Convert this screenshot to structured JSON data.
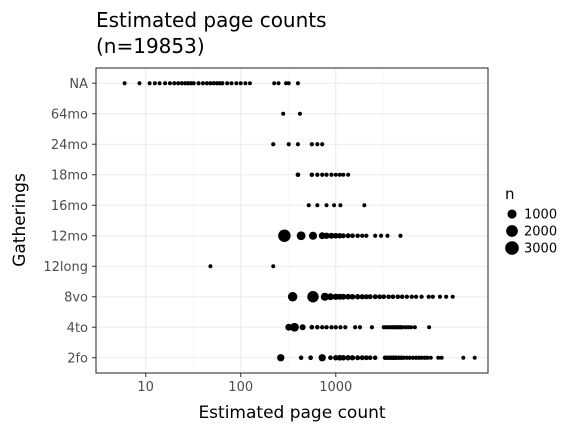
{
  "chart_data": {
    "type": "scatter",
    "title": "Estimated page counts",
    "subtitle": "(n=19853)",
    "xlabel": "Estimated page count",
    "ylabel": "Gatherings",
    "x_scale": "log10",
    "xlim": [
      3,
      40000
    ],
    "x_ticks": [
      10,
      100,
      1000
    ],
    "x_tick_labels": [
      "10",
      "100",
      "1000"
    ],
    "categories": [
      "2fo",
      "4to",
      "8vo",
      "12long",
      "12mo",
      "16mo",
      "18mo",
      "24mo",
      "64mo",
      "NA"
    ],
    "grid": true,
    "legend": {
      "title": "n",
      "position": "right",
      "sizes": [
        1000,
        2000,
        3000
      ],
      "labels": [
        "1000",
        "2000",
        "3000"
      ]
    },
    "points": [
      {
        "cat": "NA",
        "x": 6,
        "n": 25
      },
      {
        "cat": "NA",
        "x": 8.6,
        "n": 25
      },
      {
        "cat": "NA",
        "x": 11,
        "n": 25
      },
      {
        "cat": "NA",
        "x": 12.5,
        "n": 25
      },
      {
        "cat": "NA",
        "x": 14,
        "n": 25
      },
      {
        "cat": "NA",
        "x": 16,
        "n": 30
      },
      {
        "cat": "NA",
        "x": 18,
        "n": 30
      },
      {
        "cat": "NA",
        "x": 20,
        "n": 35
      },
      {
        "cat": "NA",
        "x": 22,
        "n": 35
      },
      {
        "cat": "NA",
        "x": 24,
        "n": 35
      },
      {
        "cat": "NA",
        "x": 26,
        "n": 35
      },
      {
        "cat": "NA",
        "x": 28,
        "n": 35
      },
      {
        "cat": "NA",
        "x": 30,
        "n": 35
      },
      {
        "cat": "NA",
        "x": 32,
        "n": 35
      },
      {
        "cat": "NA",
        "x": 36,
        "n": 35
      },
      {
        "cat": "NA",
        "x": 40,
        "n": 35
      },
      {
        "cat": "NA",
        "x": 44,
        "n": 35
      },
      {
        "cat": "NA",
        "x": 48,
        "n": 35
      },
      {
        "cat": "NA",
        "x": 52,
        "n": 35
      },
      {
        "cat": "NA",
        "x": 56,
        "n": 35
      },
      {
        "cat": "NA",
        "x": 60,
        "n": 35
      },
      {
        "cat": "NA",
        "x": 64,
        "n": 35
      },
      {
        "cat": "NA",
        "x": 72,
        "n": 30
      },
      {
        "cat": "NA",
        "x": 80,
        "n": 30
      },
      {
        "cat": "NA",
        "x": 90,
        "n": 25
      },
      {
        "cat": "NA",
        "x": 100,
        "n": 25
      },
      {
        "cat": "NA",
        "x": 112,
        "n": 25
      },
      {
        "cat": "NA",
        "x": 125,
        "n": 25
      },
      {
        "cat": "NA",
        "x": 225,
        "n": 25
      },
      {
        "cat": "NA",
        "x": 250,
        "n": 25
      },
      {
        "cat": "NA",
        "x": 300,
        "n": 25
      },
      {
        "cat": "NA",
        "x": 320,
        "n": 25
      },
      {
        "cat": "NA",
        "x": 400,
        "n": 25
      },
      {
        "cat": "64mo",
        "x": 280,
        "n": 25
      },
      {
        "cat": "64mo",
        "x": 420,
        "n": 25
      },
      {
        "cat": "24mo",
        "x": 220,
        "n": 40
      },
      {
        "cat": "24mo",
        "x": 320,
        "n": 35
      },
      {
        "cat": "24mo",
        "x": 400,
        "n": 35
      },
      {
        "cat": "24mo",
        "x": 560,
        "n": 35
      },
      {
        "cat": "24mo",
        "x": 640,
        "n": 35
      },
      {
        "cat": "24mo",
        "x": 720,
        "n": 35
      },
      {
        "cat": "18mo",
        "x": 400,
        "n": 70
      },
      {
        "cat": "18mo",
        "x": 560,
        "n": 60
      },
      {
        "cat": "18mo",
        "x": 640,
        "n": 50
      },
      {
        "cat": "18mo",
        "x": 720,
        "n": 40
      },
      {
        "cat": "18mo",
        "x": 800,
        "n": 40
      },
      {
        "cat": "18mo",
        "x": 900,
        "n": 35
      },
      {
        "cat": "18mo",
        "x": 1000,
        "n": 30
      },
      {
        "cat": "18mo",
        "x": 1100,
        "n": 30
      },
      {
        "cat": "18mo",
        "x": 1200,
        "n": 30
      },
      {
        "cat": "18mo",
        "x": 1350,
        "n": 25
      },
      {
        "cat": "16mo",
        "x": 520,
        "n": 30
      },
      {
        "cat": "16mo",
        "x": 640,
        "n": 30
      },
      {
        "cat": "16mo",
        "x": 800,
        "n": 25
      },
      {
        "cat": "16mo",
        "x": 960,
        "n": 25
      },
      {
        "cat": "16mo",
        "x": 1120,
        "n": 25
      },
      {
        "cat": "16mo",
        "x": 2000,
        "n": 25
      },
      {
        "cat": "12mo",
        "x": 288,
        "n": 2400
      },
      {
        "cat": "12mo",
        "x": 432,
        "n": 900
      },
      {
        "cat": "12mo",
        "x": 576,
        "n": 700
      },
      {
        "cat": "12mo",
        "x": 720,
        "n": 400
      },
      {
        "cat": "12mo",
        "x": 800,
        "n": 300
      },
      {
        "cat": "12mo",
        "x": 900,
        "n": 250
      },
      {
        "cat": "12mo",
        "x": 1000,
        "n": 200
      },
      {
        "cat": "12mo",
        "x": 1100,
        "n": 150
      },
      {
        "cat": "12mo",
        "x": 1200,
        "n": 120
      },
      {
        "cat": "12mo",
        "x": 1350,
        "n": 100
      },
      {
        "cat": "12mo",
        "x": 1500,
        "n": 80
      },
      {
        "cat": "12mo",
        "x": 1700,
        "n": 60
      },
      {
        "cat": "12mo",
        "x": 1900,
        "n": 50
      },
      {
        "cat": "12mo",
        "x": 2100,
        "n": 40
      },
      {
        "cat": "12mo",
        "x": 2600,
        "n": 35
      },
      {
        "cat": "12mo",
        "x": 3000,
        "n": 35
      },
      {
        "cat": "12mo",
        "x": 3500,
        "n": 35
      },
      {
        "cat": "12mo",
        "x": 4800,
        "n": 40
      },
      {
        "cat": "12long",
        "x": 48,
        "n": 25
      },
      {
        "cat": "12long",
        "x": 220,
        "n": 25
      },
      {
        "cat": "8vo",
        "x": 352,
        "n": 1100
      },
      {
        "cat": "8vo",
        "x": 576,
        "n": 1900
      },
      {
        "cat": "8vo",
        "x": 768,
        "n": 700
      },
      {
        "cat": "8vo",
        "x": 880,
        "n": 400
      },
      {
        "cat": "8vo",
        "x": 1000,
        "n": 300
      },
      {
        "cat": "8vo",
        "x": 1100,
        "n": 250
      },
      {
        "cat": "8vo",
        "x": 1200,
        "n": 220
      },
      {
        "cat": "8vo",
        "x": 1350,
        "n": 200
      },
      {
        "cat": "8vo",
        "x": 1500,
        "n": 180
      },
      {
        "cat": "8vo",
        "x": 1700,
        "n": 160
      },
      {
        "cat": "8vo",
        "x": 1900,
        "n": 140
      },
      {
        "cat": "8vo",
        "x": 2100,
        "n": 120
      },
      {
        "cat": "8vo",
        "x": 2300,
        "n": 110
      },
      {
        "cat": "8vo",
        "x": 2600,
        "n": 100
      },
      {
        "cat": "8vo",
        "x": 2900,
        "n": 90
      },
      {
        "cat": "8vo",
        "x": 3200,
        "n": 80
      },
      {
        "cat": "8vo",
        "x": 3600,
        "n": 70
      },
      {
        "cat": "8vo",
        "x": 4000,
        "n": 65
      },
      {
        "cat": "8vo",
        "x": 4500,
        "n": 60
      },
      {
        "cat": "8vo",
        "x": 5000,
        "n": 55
      },
      {
        "cat": "8vo",
        "x": 5600,
        "n": 50
      },
      {
        "cat": "8vo",
        "x": 6300,
        "n": 50
      },
      {
        "cat": "8vo",
        "x": 7000,
        "n": 45
      },
      {
        "cat": "8vo",
        "x": 8000,
        "n": 45
      },
      {
        "cat": "8vo",
        "x": 9500,
        "n": 40
      },
      {
        "cat": "8vo",
        "x": 10500,
        "n": 40
      },
      {
        "cat": "8vo",
        "x": 12500,
        "n": 35
      },
      {
        "cat": "8vo",
        "x": 14500,
        "n": 30
      },
      {
        "cat": "8vo",
        "x": 17000,
        "n": 25
      },
      {
        "cat": "4to",
        "x": 320,
        "n": 400
      },
      {
        "cat": "4to",
        "x": 368,
        "n": 900
      },
      {
        "cat": "4to",
        "x": 448,
        "n": 250
      },
      {
        "cat": "4to",
        "x": 560,
        "n": 80
      },
      {
        "cat": "4to",
        "x": 640,
        "n": 60
      },
      {
        "cat": "4to",
        "x": 720,
        "n": 50
      },
      {
        "cat": "4to",
        "x": 800,
        "n": 50
      },
      {
        "cat": "4to",
        "x": 900,
        "n": 45
      },
      {
        "cat": "4to",
        "x": 1000,
        "n": 45
      },
      {
        "cat": "4to",
        "x": 1120,
        "n": 40
      },
      {
        "cat": "4to",
        "x": 1260,
        "n": 40
      },
      {
        "cat": "4to",
        "x": 1600,
        "n": 40
      },
      {
        "cat": "4to",
        "x": 1800,
        "n": 35
      },
      {
        "cat": "4to",
        "x": 2400,
        "n": 35
      },
      {
        "cat": "4to",
        "x": 3200,
        "n": 35
      },
      {
        "cat": "4to",
        "x": 3400,
        "n": 35
      },
      {
        "cat": "4to",
        "x": 3600,
        "n": 35
      },
      {
        "cat": "4to",
        "x": 3800,
        "n": 35
      },
      {
        "cat": "4to",
        "x": 4000,
        "n": 35
      },
      {
        "cat": "4to",
        "x": 4200,
        "n": 35
      },
      {
        "cat": "4to",
        "x": 4400,
        "n": 35
      },
      {
        "cat": "4to",
        "x": 4600,
        "n": 35
      },
      {
        "cat": "4to",
        "x": 4800,
        "n": 35
      },
      {
        "cat": "4to",
        "x": 5000,
        "n": 35
      },
      {
        "cat": "4to",
        "x": 5400,
        "n": 35
      },
      {
        "cat": "4to",
        "x": 5800,
        "n": 35
      },
      {
        "cat": "4to",
        "x": 6200,
        "n": 30
      },
      {
        "cat": "4to",
        "x": 6800,
        "n": 30
      },
      {
        "cat": "4to",
        "x": 9600,
        "n": 25
      },
      {
        "cat": "2fo",
        "x": 264,
        "n": 500
      },
      {
        "cat": "2fo",
        "x": 432,
        "n": 60
      },
      {
        "cat": "2fo",
        "x": 544,
        "n": 80
      },
      {
        "cat": "2fo",
        "x": 720,
        "n": 500
      },
      {
        "cat": "2fo",
        "x": 880,
        "n": 80
      },
      {
        "cat": "2fo",
        "x": 1000,
        "n": 160
      },
      {
        "cat": "2fo",
        "x": 1100,
        "n": 200
      },
      {
        "cat": "2fo",
        "x": 1200,
        "n": 180
      },
      {
        "cat": "2fo",
        "x": 1350,
        "n": 160
      },
      {
        "cat": "2fo",
        "x": 1500,
        "n": 140
      },
      {
        "cat": "2fo",
        "x": 1700,
        "n": 120
      },
      {
        "cat": "2fo",
        "x": 1900,
        "n": 100
      },
      {
        "cat": "2fo",
        "x": 2100,
        "n": 90
      },
      {
        "cat": "2fo",
        "x": 2300,
        "n": 80
      },
      {
        "cat": "2fo",
        "x": 2600,
        "n": 70
      },
      {
        "cat": "2fo",
        "x": 3300,
        "n": 60
      },
      {
        "cat": "2fo",
        "x": 3500,
        "n": 60
      },
      {
        "cat": "2fo",
        "x": 3700,
        "n": 60
      },
      {
        "cat": "2fo",
        "x": 3900,
        "n": 60
      },
      {
        "cat": "2fo",
        "x": 4100,
        "n": 60
      },
      {
        "cat": "2fo",
        "x": 4300,
        "n": 55
      },
      {
        "cat": "2fo",
        "x": 4600,
        "n": 55
      },
      {
        "cat": "2fo",
        "x": 4900,
        "n": 55
      },
      {
        "cat": "2fo",
        "x": 5200,
        "n": 50
      },
      {
        "cat": "2fo",
        "x": 5600,
        "n": 50
      },
      {
        "cat": "2fo",
        "x": 6000,
        "n": 50
      },
      {
        "cat": "2fo",
        "x": 6500,
        "n": 45
      },
      {
        "cat": "2fo",
        "x": 7000,
        "n": 45
      },
      {
        "cat": "2fo",
        "x": 7500,
        "n": 40
      },
      {
        "cat": "2fo",
        "x": 8000,
        "n": 40
      },
      {
        "cat": "2fo",
        "x": 8600,
        "n": 35
      },
      {
        "cat": "2fo",
        "x": 9200,
        "n": 35
      },
      {
        "cat": "2fo",
        "x": 10000,
        "n": 30
      },
      {
        "cat": "2fo",
        "x": 12000,
        "n": 30
      },
      {
        "cat": "2fo",
        "x": 13000,
        "n": 30
      },
      {
        "cat": "2fo",
        "x": 22000,
        "n": 25
      },
      {
        "cat": "2fo",
        "x": 29000,
        "n": 25
      }
    ]
  }
}
